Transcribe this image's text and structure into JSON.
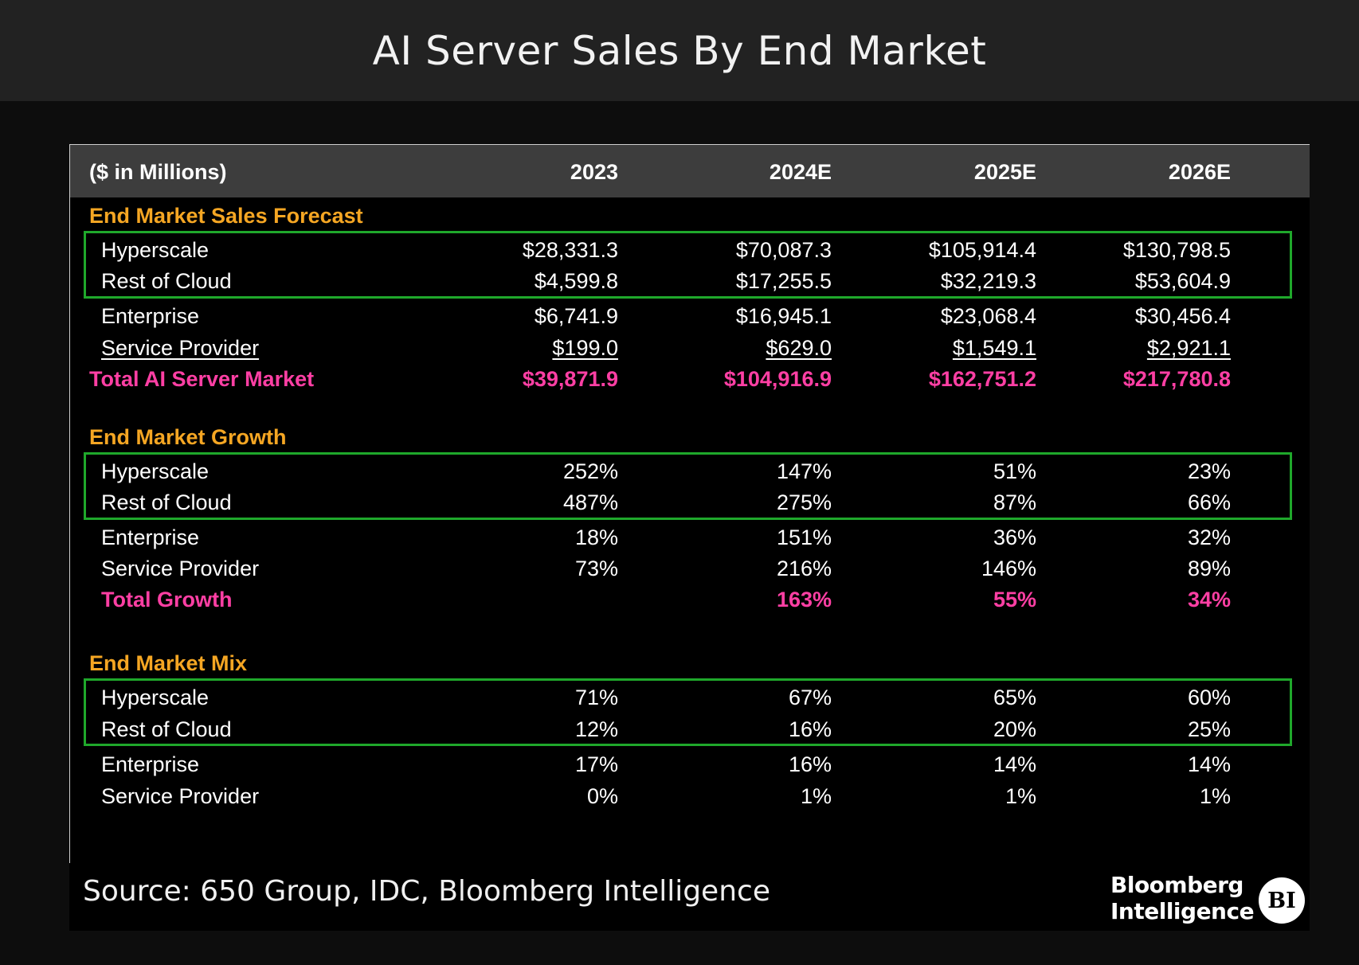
{
  "title": "AI Server Sales By End Market",
  "chart_data": {
    "type": "table",
    "title": "AI Server Sales By End Market",
    "unit_label": "($ in Millions)",
    "columns": [
      "2023",
      "2024E",
      "2025E",
      "2026E"
    ],
    "sections": [
      {
        "title": "End Market Sales Forecast",
        "rows": [
          {
            "label": "Hyperscale",
            "values": [
              "$28,331.3",
              "$70,087.3",
              "$105,914.4",
              "$130,798.5"
            ]
          },
          {
            "label": "Rest of Cloud",
            "values": [
              "$4,599.8",
              "$17,255.5",
              "$32,219.3",
              "$53,604.9"
            ]
          },
          {
            "label": "Enterprise",
            "values": [
              "$6,741.9",
              "$16,945.1",
              "$23,068.4",
              "$30,456.4"
            ]
          },
          {
            "label": "Service Provider",
            "values": [
              "$199.0",
              "$629.0",
              "$1,549.1",
              "$2,921.1"
            ]
          }
        ],
        "total": {
          "label": "Total AI Server Market",
          "values": [
            "$39,871.9",
            "$104,916.9",
            "$162,751.2",
            "$217,780.8"
          ]
        }
      },
      {
        "title": "End Market Growth",
        "rows": [
          {
            "label": "Hyperscale",
            "values": [
              "252%",
              "147%",
              "51%",
              "23%"
            ]
          },
          {
            "label": "Rest of Cloud",
            "values": [
              "487%",
              "275%",
              "87%",
              "66%"
            ]
          },
          {
            "label": "Enterprise",
            "values": [
              "18%",
              "151%",
              "36%",
              "32%"
            ]
          },
          {
            "label": "Service Provider",
            "values": [
              "73%",
              "216%",
              "146%",
              "89%"
            ]
          }
        ],
        "total": {
          "label": "Total Growth",
          "values": [
            "",
            "163%",
            "55%",
            "34%"
          ]
        }
      },
      {
        "title": "End Market Mix",
        "rows": [
          {
            "label": "Hyperscale",
            "values": [
              "71%",
              "67%",
              "65%",
              "60%"
            ]
          },
          {
            "label": "Rest of Cloud",
            "values": [
              "12%",
              "16%",
              "20%",
              "25%"
            ]
          },
          {
            "label": "Enterprise",
            "values": [
              "17%",
              "16%",
              "14%",
              "14%"
            ]
          },
          {
            "label": "Service Provider",
            "values": [
              "0%",
              "1%",
              "1%",
              "1%"
            ]
          }
        ]
      }
    ],
    "highlighted_rows": [
      "Hyperscale",
      "Rest of Cloud"
    ]
  },
  "footer": {
    "source": "Source: 650 Group, IDC, Bloomberg Intelligence",
    "brand_line1": "Bloomberg",
    "brand_line2": "Intelligence",
    "badge": "BI"
  },
  "colors": {
    "section_title": "#f5a623",
    "total": "#ff3fa4",
    "highlight_box": "#1fa82b",
    "header_band": "#3d3d3d"
  }
}
